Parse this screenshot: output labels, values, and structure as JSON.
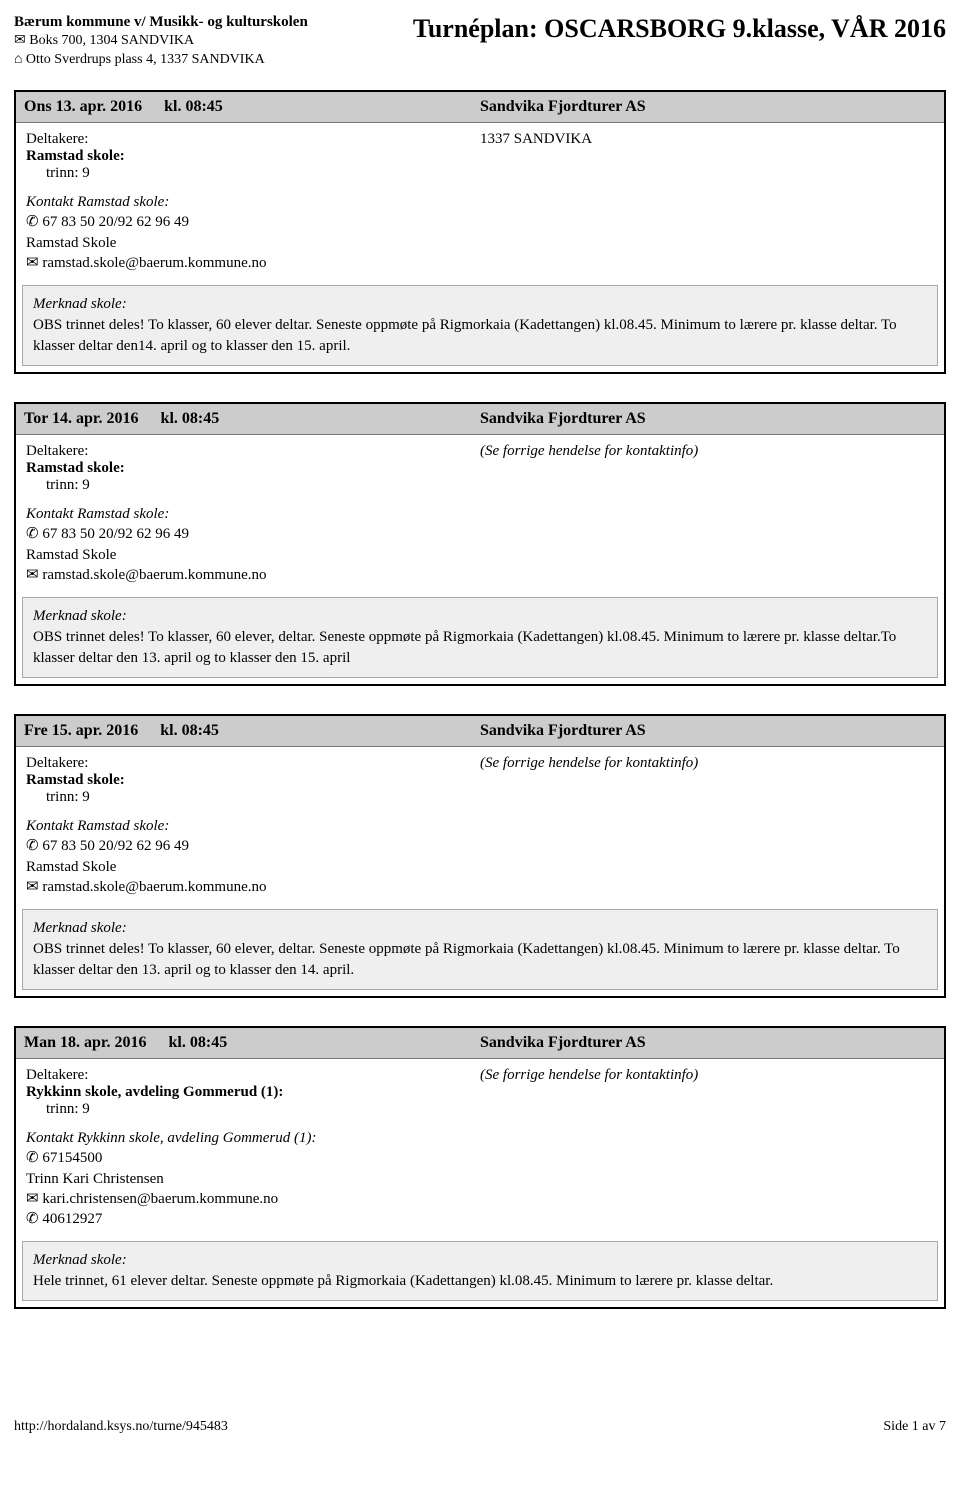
{
  "header": {
    "org_name": "Bærum kommune v/ Musikk- og kulturskolen",
    "postbox": "✉ Boks 700, 1304 SANDVIKA",
    "address": "⌂ Otto Sverdrups plass 4, 1337 SANDVIKA",
    "title": "Turnéplan: OSCARSBORG 9.klasse, VÅR 2016"
  },
  "labels": {
    "participants": "Deltakere:",
    "note": "Merknad skole:"
  },
  "events": [
    {
      "datetime": "Ons 13. apr. 2016",
      "time": "kl. 08:45",
      "venue": "Sandvika Fjordturer AS",
      "right_text": "1337 SANDVIKA",
      "right_italic": false,
      "school_bold": "Ramstad skole:",
      "trinn": "trinn: 9",
      "contact_title": "Kontakt Ramstad skole:",
      "contact_lines": [
        "✆ 67 83 50 20/92 62 96 49",
        "Ramstad Skole",
        "✉ ramstad.skole@baerum.kommune.no"
      ],
      "note": "OBS trinnet deles! To klasser, 60 elever deltar. Seneste oppmøte på Rigmorkaia (Kadettangen) kl.08.45. Minimum to lærere pr. klasse deltar. To klasser deltar den14. april og to klasser den 15. april."
    },
    {
      "datetime": "Tor 14. apr. 2016",
      "time": "kl. 08:45",
      "venue": "Sandvika Fjordturer AS",
      "right_text": "(Se forrige hendelse for kontaktinfo)",
      "right_italic": true,
      "school_bold": "Ramstad skole:",
      "trinn": "trinn: 9",
      "contact_title": "Kontakt Ramstad skole:",
      "contact_lines": [
        "✆ 67 83 50 20/92 62 96 49",
        "Ramstad Skole",
        "✉ ramstad.skole@baerum.kommune.no"
      ],
      "note": "OBS trinnet deles! To klasser, 60 elever, deltar. Seneste oppmøte på Rigmorkaia (Kadettangen) kl.08.45. Minimum to lærere pr. klasse deltar.To klasser deltar den 13. april og to klasser den 15. april"
    },
    {
      "datetime": "Fre 15. apr. 2016",
      "time": "kl. 08:45",
      "venue": "Sandvika Fjordturer AS",
      "right_text": "(Se forrige hendelse for kontaktinfo)",
      "right_italic": true,
      "school_bold": "Ramstad skole:",
      "trinn": "trinn: 9",
      "contact_title": "Kontakt Ramstad skole:",
      "contact_lines": [
        "✆ 67 83 50 20/92 62 96 49",
        "Ramstad Skole",
        "✉ ramstad.skole@baerum.kommune.no"
      ],
      "note": "OBS trinnet deles! To klasser, 60 elever, deltar. Seneste oppmøte på Rigmorkaia (Kadettangen) kl.08.45. Minimum to lærere pr. klasse deltar. To klasser deltar den 13. april og to klasser den 14. april."
    },
    {
      "datetime": "Man 18. apr. 2016",
      "time": "kl. 08:45",
      "venue": "Sandvika Fjordturer AS",
      "right_text": "(Se forrige hendelse for kontaktinfo)",
      "right_italic": true,
      "school_bold": "Rykkinn skole, avdeling Gommerud (1):",
      "trinn": "trinn: 9",
      "contact_title": "Kontakt Rykkinn skole, avdeling Gommerud (1):",
      "contact_lines": [
        "✆ 67154500",
        "Trinn Kari Christensen",
        "✉ kari.christensen@baerum.kommune.no",
        "✆ 40612927"
      ],
      "note": "Hele trinnet, 61 elever deltar. Seneste oppmøte på Rigmorkaia (Kadettangen) kl.08.45. Minimum to lærere pr. klasse deltar."
    }
  ],
  "footer": {
    "url": "http://hordaland.ksys.no/turne/945483",
    "page": "Side 1 av 7"
  }
}
